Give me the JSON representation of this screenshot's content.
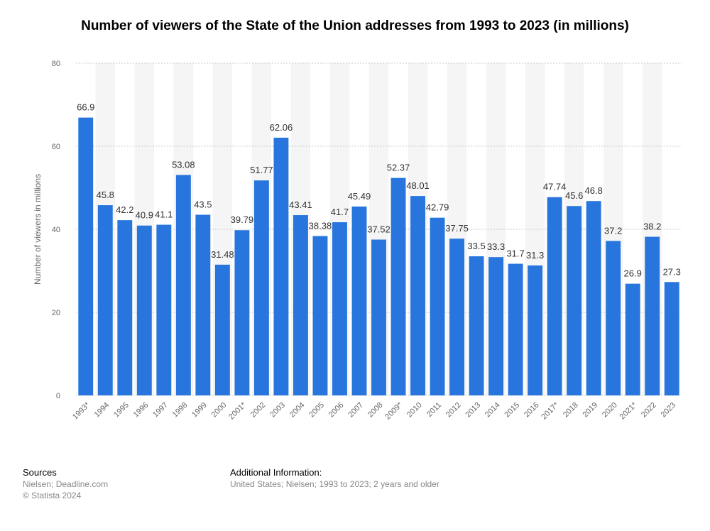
{
  "chart_data": {
    "type": "bar",
    "title": "Number of viewers of the State of the Union addresses from 1993 to 2023 (in millions)",
    "y_label": "Number of viewers in millions",
    "categories": [
      "1993*",
      "1994",
      "1995",
      "1996",
      "1997",
      "1998",
      "1999",
      "2000",
      "2001*",
      "2002",
      "2003",
      "2004",
      "2005",
      "2006",
      "2007",
      "2008",
      "2009*",
      "2010",
      "2011",
      "2012",
      "2013",
      "2014",
      "2015",
      "2016",
      "2017*",
      "2018",
      "2019",
      "2020",
      "2021*",
      "2022",
      "2023"
    ],
    "values": [
      66.9,
      45.8,
      42.2,
      40.9,
      41.1,
      53.08,
      43.5,
      31.48,
      39.79,
      51.77,
      62.06,
      43.41,
      38.38,
      41.7,
      45.49,
      37.52,
      52.37,
      48.01,
      42.79,
      37.75,
      33.5,
      33.3,
      31.7,
      31.3,
      47.74,
      45.6,
      46.8,
      37.2,
      26.9,
      38.2,
      27.3
    ],
    "color": "#2876dd",
    "ylim": [
      0,
      80
    ],
    "yticks": [
      0,
      20,
      40,
      60,
      80
    ],
    "grid": true
  },
  "footer": {
    "sources_title": "Sources",
    "sources": "Nielsen; Deadline.com",
    "copyright": "© Statista 2024",
    "info_title": "Additional Information:",
    "info": "United States; Nielsen; 1993 to 2023; 2 years and older"
  }
}
